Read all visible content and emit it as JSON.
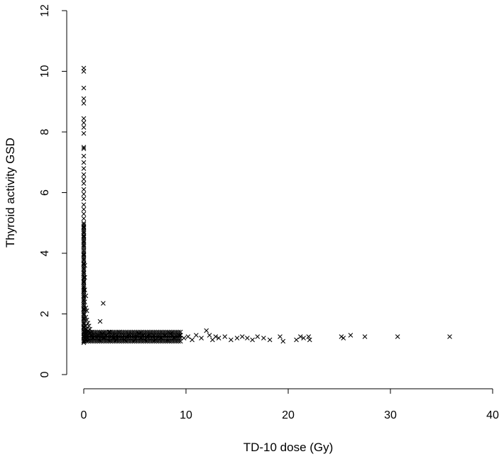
{
  "chart_data": {
    "type": "scatter",
    "title": "",
    "xlabel": "TD-10 dose (Gy)",
    "ylabel": "Thyroid activity GSD",
    "xlim": [
      0,
      40
    ],
    "ylim": [
      0,
      12
    ],
    "xticks": [
      0,
      10,
      20,
      30,
      40
    ],
    "yticks": [
      0,
      2,
      4,
      6,
      8,
      10,
      12
    ],
    "marker": "x",
    "marker_color": "#000000",
    "grid": false,
    "points": [
      [
        0.0,
        10.1
      ],
      [
        0.0,
        10.0
      ],
      [
        0.0,
        9.45
      ],
      [
        0.0,
        9.1
      ],
      [
        0.0,
        8.95
      ],
      [
        0.0,
        8.45
      ],
      [
        0.0,
        8.3
      ],
      [
        0.0,
        8.15
      ],
      [
        0.0,
        7.95
      ],
      [
        0.0,
        7.5
      ],
      [
        0.0,
        7.45
      ],
      [
        0.0,
        7.2
      ],
      [
        0.0,
        7.0
      ],
      [
        0.0,
        6.8
      ],
      [
        0.0,
        6.6
      ],
      [
        0.0,
        6.45
      ],
      [
        0.0,
        6.3
      ],
      [
        0.0,
        6.1
      ],
      [
        0.0,
        5.95
      ],
      [
        0.0,
        5.8
      ],
      [
        0.0,
        5.6
      ],
      [
        0.0,
        5.45
      ],
      [
        0.0,
        5.3
      ],
      [
        0.0,
        5.15
      ],
      [
        0.0,
        5.0
      ],
      [
        0.0,
        4.85
      ],
      [
        0.0,
        4.7
      ],
      [
        0.0,
        4.55
      ],
      [
        0.0,
        4.4
      ],
      [
        0.0,
        4.25
      ],
      [
        0.0,
        4.1
      ],
      [
        0.0,
        3.95
      ],
      [
        0.0,
        3.8
      ],
      [
        0.0,
        3.65
      ],
      [
        0.0,
        3.5
      ],
      [
        0.0,
        3.35
      ],
      [
        0.0,
        3.2
      ],
      [
        0.0,
        3.05
      ],
      [
        0.0,
        2.9
      ],
      [
        0.0,
        2.75
      ],
      [
        0.0,
        2.6
      ],
      [
        0.0,
        2.45
      ],
      [
        0.0,
        2.3
      ],
      [
        0.0,
        2.15
      ],
      [
        0.0,
        2.0
      ],
      [
        0.0,
        1.85
      ],
      [
        0.0,
        1.7
      ],
      [
        0.0,
        1.55
      ],
      [
        0.0,
        1.4
      ],
      [
        0.0,
        1.25
      ],
      [
        0.0,
        1.1
      ],
      [
        0.1,
        3.6
      ],
      [
        0.1,
        3.2
      ],
      [
        0.1,
        2.8
      ],
      [
        0.1,
        2.4
      ],
      [
        0.1,
        2.1
      ],
      [
        0.1,
        1.8
      ],
      [
        0.1,
        1.5
      ],
      [
        0.1,
        1.2
      ],
      [
        0.2,
        2.6
      ],
      [
        0.2,
        2.2
      ],
      [
        0.2,
        1.9
      ],
      [
        0.2,
        1.6
      ],
      [
        0.2,
        1.35
      ],
      [
        0.2,
        1.15
      ],
      [
        0.3,
        2.1
      ],
      [
        0.3,
        1.8
      ],
      [
        0.3,
        1.5
      ],
      [
        0.3,
        1.25
      ],
      [
        0.4,
        1.7
      ],
      [
        0.4,
        1.45
      ],
      [
        0.4,
        1.2
      ],
      [
        0.5,
        1.6
      ],
      [
        0.5,
        1.35
      ],
      [
        0.5,
        1.15
      ],
      [
        0.6,
        1.5
      ],
      [
        0.7,
        1.3
      ],
      [
        0.8,
        1.4
      ],
      [
        0.9,
        1.2
      ],
      [
        1.0,
        1.35
      ],
      [
        1.1,
        1.25
      ],
      [
        1.6,
        1.75
      ],
      [
        1.9,
        2.35
      ],
      [
        1.2,
        1.2
      ],
      [
        1.4,
        1.3
      ],
      [
        1.5,
        1.15
      ],
      [
        1.7,
        1.25
      ],
      [
        1.8,
        1.35
      ],
      [
        2.0,
        1.2
      ],
      [
        2.2,
        1.3
      ],
      [
        2.4,
        1.15
      ],
      [
        2.5,
        1.4
      ],
      [
        2.7,
        1.25
      ],
      [
        2.9,
        1.2
      ],
      [
        3.0,
        1.35
      ],
      [
        3.2,
        1.15
      ],
      [
        3.4,
        1.25
      ],
      [
        3.5,
        1.4
      ],
      [
        3.7,
        1.2
      ],
      [
        3.9,
        1.3
      ],
      [
        4.0,
        1.15
      ],
      [
        4.2,
        1.25
      ],
      [
        4.4,
        1.35
      ],
      [
        4.6,
        1.2
      ],
      [
        4.8,
        1.3
      ],
      [
        5.0,
        1.15
      ],
      [
        5.2,
        1.25
      ],
      [
        5.4,
        1.35
      ],
      [
        5.6,
        1.2
      ],
      [
        5.8,
        1.3
      ],
      [
        6.0,
        1.15
      ],
      [
        6.2,
        1.25
      ],
      [
        6.4,
        1.35
      ],
      [
        6.6,
        1.2
      ],
      [
        6.8,
        1.3
      ],
      [
        7.0,
        1.15
      ],
      [
        7.3,
        1.25
      ],
      [
        7.6,
        1.2
      ],
      [
        7.9,
        1.3
      ],
      [
        8.2,
        1.15
      ],
      [
        8.5,
        1.35
      ],
      [
        8.8,
        1.2
      ],
      [
        9.1,
        1.25
      ],
      [
        9.4,
        1.3
      ],
      [
        9.8,
        1.2
      ],
      [
        10.2,
        1.25
      ],
      [
        10.6,
        1.15
      ],
      [
        11.0,
        1.3
      ],
      [
        11.5,
        1.2
      ],
      [
        12.0,
        1.45
      ],
      [
        12.3,
        1.3
      ],
      [
        12.6,
        1.15
      ],
      [
        12.9,
        1.25
      ],
      [
        13.2,
        1.2
      ],
      [
        13.8,
        1.25
      ],
      [
        14.4,
        1.15
      ],
      [
        15.0,
        1.2
      ],
      [
        15.5,
        1.25
      ],
      [
        16.0,
        1.2
      ],
      [
        16.5,
        1.15
      ],
      [
        17.0,
        1.25
      ],
      [
        17.6,
        1.2
      ],
      [
        18.2,
        1.15
      ],
      [
        19.2,
        1.25
      ],
      [
        19.5,
        1.1
      ],
      [
        20.8,
        1.15
      ],
      [
        21.2,
        1.25
      ],
      [
        21.5,
        1.2
      ],
      [
        22.0,
        1.25
      ],
      [
        22.1,
        1.15
      ],
      [
        25.2,
        1.25
      ],
      [
        25.4,
        1.2
      ],
      [
        26.1,
        1.3
      ],
      [
        27.5,
        1.25
      ],
      [
        30.7,
        1.25
      ],
      [
        35.8,
        1.25
      ]
    ]
  }
}
